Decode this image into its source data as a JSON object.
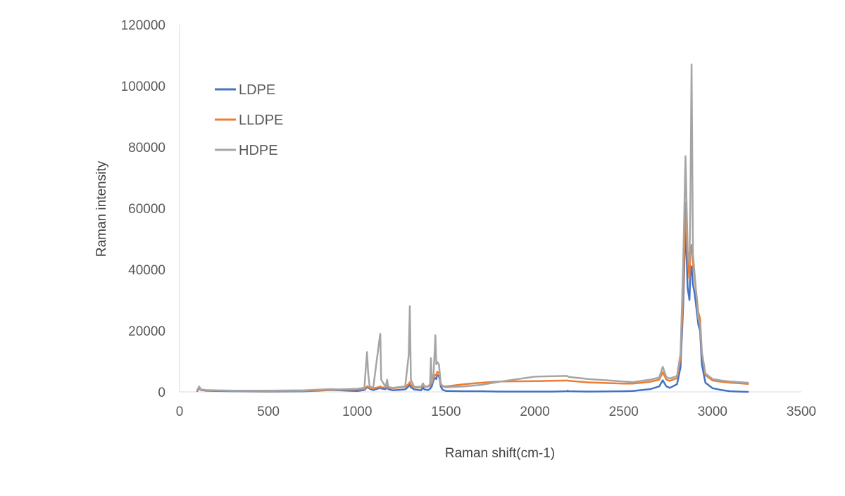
{
  "chart_data": {
    "type": "line",
    "title": "",
    "xlabel": "Raman shift(cm-1)",
    "ylabel": "Raman intensity",
    "xlim": [
      0,
      3500
    ],
    "ylim": [
      0,
      120000
    ],
    "x_ticks": [
      0,
      500,
      1000,
      1500,
      2000,
      2500,
      3000,
      3500
    ],
    "y_ticks": [
      0,
      20000,
      40000,
      60000,
      80000,
      100000,
      120000
    ],
    "x_tick_labels": [
      "0",
      "500",
      "1000",
      "1500",
      "2000",
      "2500",
      "3000",
      "3500"
    ],
    "y_tick_labels": [
      "0",
      "20000",
      "40000",
      "60000",
      "80000",
      "100000",
      "120000"
    ],
    "grid": false,
    "legend": "top-left",
    "series": [
      {
        "name": "LDPE",
        "color": "#4472c4",
        "x": [
          100,
          110,
          120,
          150,
          200,
          300,
          500,
          700,
          850,
          900,
          1000,
          1040,
          1055,
          1062,
          1070,
          1090,
          1125,
          1130,
          1135,
          1160,
          1168,
          1175,
          1200,
          1270,
          1290,
          1296,
          1302,
          1320,
          1360,
          1370,
          1378,
          1400,
          1410,
          1415,
          1420,
          1430,
          1440,
          1445,
          1450,
          1460,
          1465,
          1470,
          1480,
          1500,
          1600,
          1700,
          1800,
          2000,
          2100,
          2180,
          2185,
          2190,
          2300,
          2500,
          2550,
          2600,
          2650,
          2700,
          2720,
          2740,
          2760,
          2800,
          2820,
          2835,
          2848,
          2860,
          2870,
          2875,
          2882,
          2890,
          2900,
          2920,
          2930,
          2940,
          2960,
          3000,
          3050,
          3100,
          3150,
          3200
        ],
        "y": [
          300,
          1200,
          600,
          400,
          300,
          200,
          100,
          150,
          600,
          500,
          300,
          600,
          1500,
          1400,
          1000,
          600,
          1200,
          1500,
          1100,
          900,
          2000,
          900,
          500,
          800,
          1800,
          2600,
          1500,
          800,
          500,
          1400,
          800,
          600,
          1000,
          1400,
          1800,
          4000,
          4500,
          4200,
          5500,
          5200,
          4000,
          1800,
          700,
          300,
          200,
          200,
          100,
          100,
          100,
          200,
          400,
          200,
          100,
          200,
          300,
          600,
          900,
          1800,
          3800,
          1800,
          1300,
          2500,
          8000,
          28000,
          55000,
          34000,
          30000,
          38000,
          41000,
          35000,
          32000,
          22000,
          20000,
          9000,
          3000,
          1200,
          600,
          200,
          100,
          0
        ]
      },
      {
        "name": "LLDPE",
        "color": "#ed7d31",
        "x": [
          100,
          110,
          120,
          150,
          200,
          300,
          500,
          700,
          850,
          900,
          1000,
          1040,
          1055,
          1062,
          1070,
          1090,
          1125,
          1130,
          1135,
          1160,
          1168,
          1175,
          1200,
          1270,
          1290,
          1296,
          1302,
          1320,
          1360,
          1370,
          1378,
          1400,
          1410,
          1415,
          1420,
          1430,
          1440,
          1445,
          1450,
          1460,
          1465,
          1470,
          1480,
          1500,
          1600,
          1700,
          1800,
          2000,
          2100,
          2180,
          2185,
          2190,
          2300,
          2500,
          2550,
          2600,
          2650,
          2700,
          2720,
          2740,
          2760,
          2800,
          2820,
          2835,
          2848,
          2860,
          2870,
          2875,
          2882,
          2890,
          2900,
          2920,
          2930,
          2940,
          2960,
          3000,
          3050,
          3100,
          3150,
          3200
        ],
        "y": [
          500,
          1300,
          700,
          500,
          400,
          300,
          200,
          300,
          700,
          700,
          800,
          900,
          1800,
          1700,
          1300,
          1100,
          1600,
          1800,
          1500,
          1400,
          2400,
          1400,
          1200,
          1600,
          2600,
          3200,
          2300,
          1500,
          1400,
          2200,
          1700,
          1700,
          2000,
          2400,
          2800,
          4800,
          5600,
          5300,
          6600,
          6200,
          5000,
          2800,
          1900,
          1800,
          2500,
          3000,
          3400,
          3500,
          3600,
          3700,
          3700,
          3600,
          3100,
          2700,
          2700,
          3000,
          3300,
          4000,
          6400,
          4000,
          3600,
          4500,
          11000,
          33000,
          62000,
          43000,
          37000,
          45000,
          48000,
          42000,
          37000,
          26000,
          24000,
          13000,
          5500,
          3700,
          3300,
          3000,
          2800,
          2600
        ]
      },
      {
        "name": "HDPE",
        "color": "#a5a5a5",
        "x": [
          100,
          110,
          120,
          150,
          200,
          300,
          500,
          700,
          850,
          900,
          1000,
          1040,
          1055,
          1062,
          1070,
          1090,
          1125,
          1130,
          1135,
          1160,
          1168,
          1175,
          1200,
          1270,
          1290,
          1296,
          1302,
          1320,
          1360,
          1370,
          1378,
          1400,
          1410,
          1415,
          1420,
          1430,
          1440,
          1445,
          1450,
          1460,
          1465,
          1470,
          1480,
          1500,
          1600,
          1700,
          1800,
          2000,
          2100,
          2180,
          2185,
          2190,
          2300,
          2500,
          2550,
          2600,
          2650,
          2700,
          2720,
          2740,
          2760,
          2800,
          2820,
          2835,
          2848,
          2860,
          2870,
          2875,
          2882,
          2890,
          2900,
          2920,
          2930,
          2940,
          2960,
          3000,
          3050,
          3100,
          3150,
          3200
        ],
        "y": [
          600,
          1800,
          800,
          600,
          500,
          400,
          400,
          500,
          900,
          800,
          1000,
          1300,
          13000,
          6000,
          1800,
          1300,
          17000,
          19000,
          4000,
          1600,
          4000,
          1600,
          1300,
          1800,
          12000,
          28000,
          4000,
          1700,
          1600,
          2800,
          1900,
          1800,
          2600,
          11000,
          3000,
          6000,
          18500,
          9000,
          9800,
          9000,
          6000,
          2600,
          1700,
          1500,
          1800,
          2300,
          3300,
          5000,
          5100,
          5200,
          5100,
          4900,
          4200,
          3400,
          3200,
          3600,
          4000,
          4700,
          8200,
          4800,
          4400,
          5200,
          12500,
          42000,
          77000,
          46000,
          42000,
          60000,
          107000,
          45000,
          38000,
          24000,
          22000,
          13000,
          6000,
          4200,
          3700,
          3400,
          3200,
          3000
        ]
      }
    ]
  }
}
